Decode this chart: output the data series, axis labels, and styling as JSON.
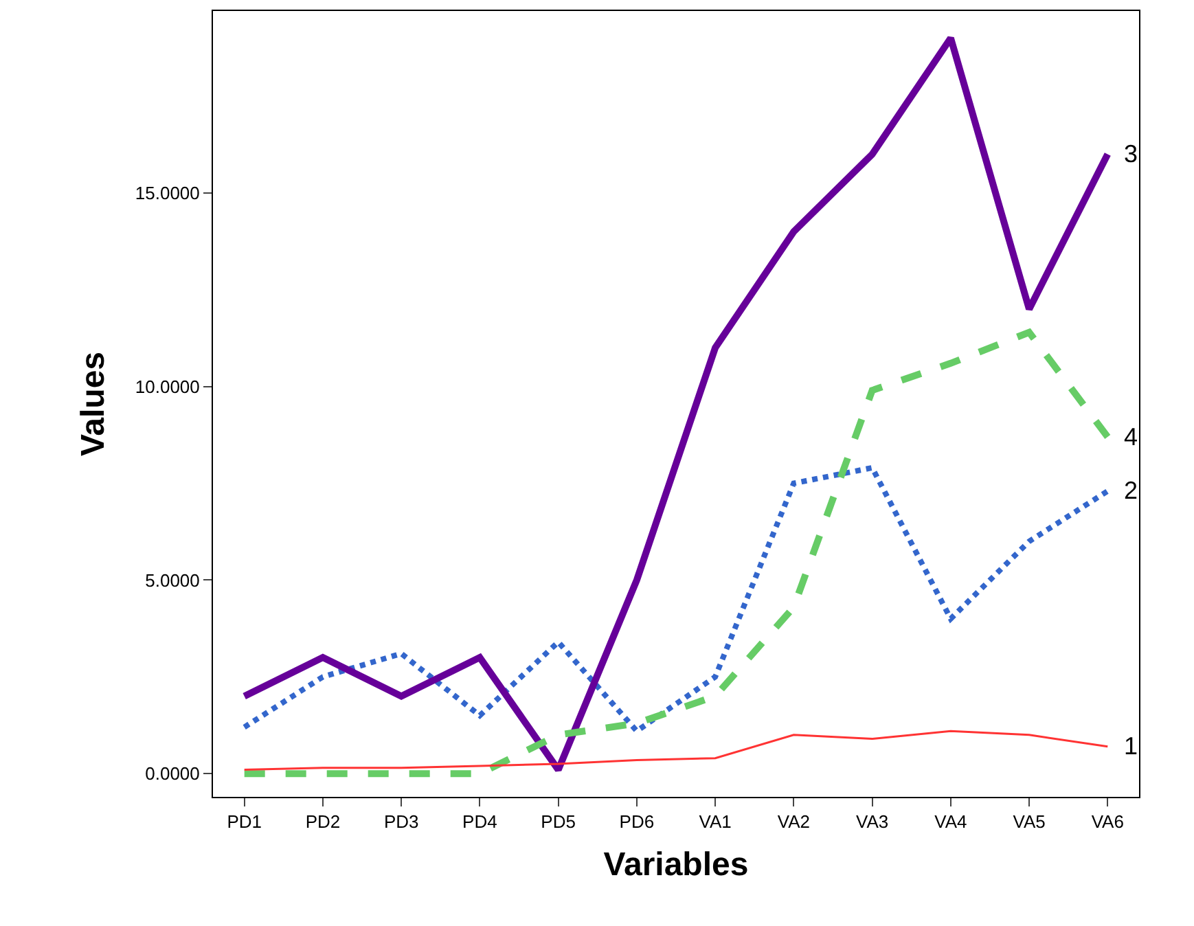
{
  "chart_data": {
    "type": "line",
    "xlabel": "Variables",
    "ylabel": "Values",
    "categories": [
      "PD1",
      "PD2",
      "PD3",
      "PD4",
      "PD5",
      "PD6",
      "VA1",
      "VA2",
      "VA3",
      "VA4",
      "VA5",
      "VA6"
    ],
    "ylim": [
      -0.6,
      19.7
    ],
    "yticks": [
      {
        "value": 0,
        "label": "0.0000"
      },
      {
        "value": 5,
        "label": "5.0000"
      },
      {
        "value": 10,
        "label": "10.0000"
      },
      {
        "value": 15,
        "label": "15.0000"
      }
    ],
    "legend": false,
    "marker": "none",
    "series": [
      {
        "name": "1",
        "color": "#ff3333",
        "line_style": "solid",
        "values": [
          0.1,
          0.15,
          0.15,
          0.2,
          0.25,
          0.35,
          0.4,
          1.0,
          0.9,
          1.1,
          1.0,
          0.7
        ]
      },
      {
        "name": "2",
        "color": "#3366cc",
        "line_style": "dotted",
        "values": [
          1.2,
          2.5,
          3.1,
          1.5,
          3.4,
          1.1,
          2.5,
          7.5,
          7.9,
          4.0,
          6.0,
          7.3
        ]
      },
      {
        "name": "3",
        "color": "#660099",
        "line_style": "solid",
        "values": [
          2.0,
          3.0,
          2.0,
          3.0,
          0.1,
          5.0,
          11.0,
          14.0,
          16.0,
          19.0,
          12.0,
          16.0
        ]
      },
      {
        "name": "4",
        "color": "#66cc66",
        "line_style": "dashed",
        "values": [
          0,
          0,
          0,
          0,
          1.0,
          1.3,
          2.0,
          4.3,
          9.9,
          10.6,
          11.4,
          8.7
        ]
      }
    ]
  }
}
